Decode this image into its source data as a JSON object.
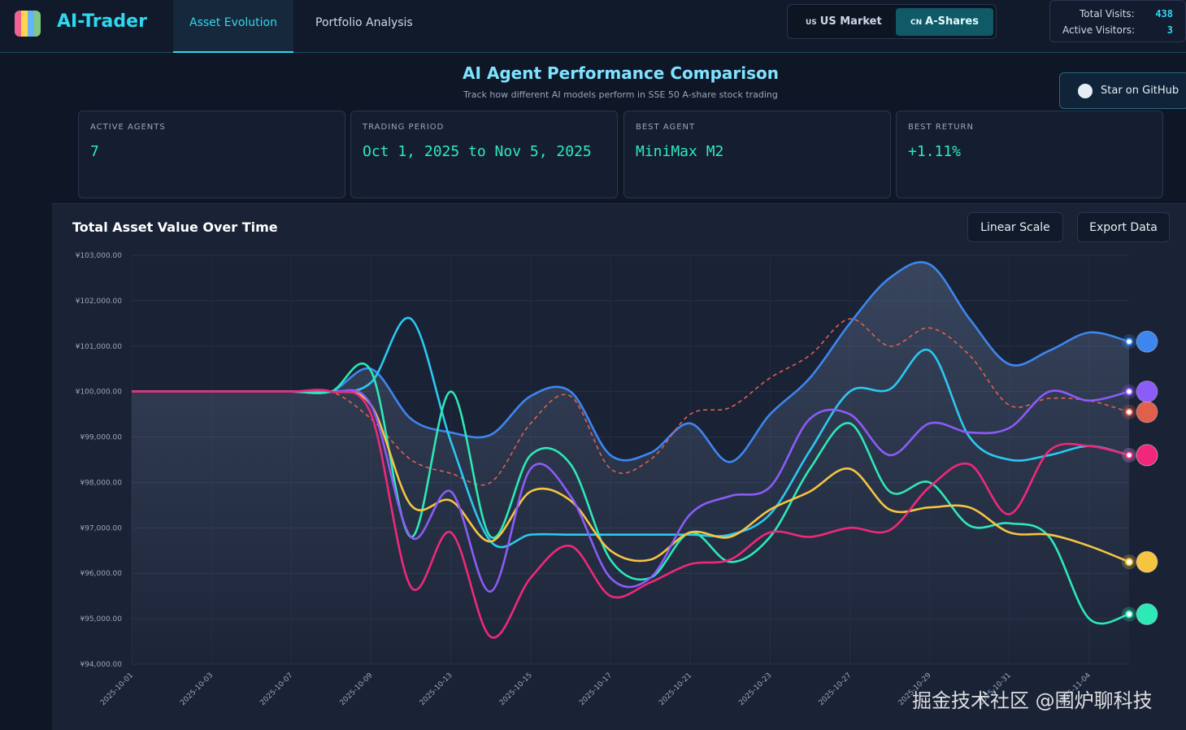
{
  "header": {
    "brand": "AI-Trader",
    "tabs": [
      "Asset Evolution",
      "Portfolio Analysis"
    ],
    "markets": [
      {
        "code": "US",
        "label": "US Market"
      },
      {
        "code": "CN",
        "label": "A-Shares"
      }
    ],
    "visits": {
      "total_label": "Total Visits:",
      "total": 438,
      "active_label": "Active Visitors:",
      "active": 3
    }
  },
  "page": {
    "title": "AI Agent Performance Comparison",
    "subtitle": "Track how different AI models perform in SSE 50 A-share stock trading",
    "github": "Star on GitHub"
  },
  "stats": [
    {
      "label": "ACTIVE AGENTS",
      "value": 7
    },
    {
      "label": "TRADING PERIOD",
      "value": "Oct 1, 2025 to Nov 5, 2025"
    },
    {
      "label": "BEST AGENT",
      "value": "MiniMax M2"
    },
    {
      "label": "BEST RETURN",
      "value": "+1.11%"
    }
  ],
  "panel": {
    "title": "Total Asset Value Over Time",
    "buttons": [
      "Linear Scale",
      "Export Data"
    ],
    "watermark": "掘金技术社区 @围炉聊科技"
  },
  "chart_data": {
    "type": "line",
    "grid": true,
    "categories": [
      "2025-10-01",
      null,
      "2025-10-03",
      null,
      "2025-10-07",
      null,
      "2025-10-09",
      null,
      "2025-10-13",
      null,
      "2025-10-15",
      null,
      "2025-10-17",
      null,
      "2025-10-21",
      null,
      "2025-10-23",
      null,
      "2025-10-27",
      null,
      "2025-10-29",
      null,
      "2025-10-31",
      null,
      "2025-11-04",
      null
    ],
    "ylim": [
      94000,
      103000
    ],
    "yticks": [
      {
        "value": 94000,
        "label": "¥94,000.00"
      },
      {
        "value": 95000,
        "label": "¥95,000.00"
      },
      {
        "value": 96000,
        "label": "¥96,000.00"
      },
      {
        "value": 97000,
        "label": "¥97,000.00"
      },
      {
        "value": 98000,
        "label": "¥98,000.00"
      },
      {
        "value": 99000,
        "label": "¥99,000.00"
      },
      {
        "value": 100000,
        "label": "¥100,000.00"
      },
      {
        "value": 101000,
        "label": "¥101,000.00"
      },
      {
        "value": 102000,
        "label": "¥102,000.00"
      },
      {
        "value": 103000,
        "label": "¥103,000.00"
      }
    ],
    "series": [
      {
        "color": "#3d86f0",
        "values": [
          100000,
          100000,
          100000,
          100000,
          100000,
          100000,
          100500,
          99400,
          99100,
          99050,
          99900,
          100000,
          98600,
          98650,
          99300,
          98450,
          99500,
          100300,
          101500,
          102500,
          102800,
          101600,
          100600,
          100900,
          101300,
          101100
        ]
      },
      {
        "color": "#e0604e",
        "dashed": true,
        "values": [
          100000,
          100000,
          100000,
          100000,
          100000,
          100000,
          99400,
          98500,
          98200,
          98000,
          99300,
          99900,
          98300,
          98500,
          99500,
          99650,
          100300,
          100800,
          101600,
          101000,
          101400,
          100800,
          99700,
          99850,
          99800,
          99550
        ]
      },
      {
        "color": "#2cc8f0",
        "values": [
          100000,
          100000,
          100000,
          100000,
          100000,
          100000,
          100200,
          101600,
          98900,
          96700,
          96850,
          96850,
          96850,
          96850,
          96850,
          96850,
          97300,
          98700,
          100000,
          100050,
          100900,
          99000,
          98500,
          98600,
          98800,
          98600
        ]
      },
      {
        "color": "#2ee8b6",
        "values": [
          100000,
          100000,
          100000,
          100000,
          100000,
          100000,
          100450,
          96800,
          100000,
          96800,
          98600,
          98400,
          96300,
          95900,
          96900,
          96250,
          96800,
          98300,
          99300,
          97800,
          98000,
          97050,
          97100,
          96800,
          95000,
          95100
        ]
      },
      {
        "color": "#f5c542",
        "values": [
          100000,
          100000,
          100000,
          100000,
          100000,
          100000,
          99700,
          97500,
          97600,
          96700,
          97800,
          97600,
          96500,
          96300,
          96900,
          96800,
          97400,
          97800,
          98300,
          97400,
          97450,
          97450,
          96900,
          96850,
          96600,
          96250
        ]
      },
      {
        "color": "#8b5cf6",
        "values": [
          100000,
          100000,
          100000,
          100000,
          100000,
          100000,
          99700,
          96800,
          97800,
          95600,
          98300,
          97700,
          95900,
          95900,
          97300,
          97700,
          97900,
          99400,
          99500,
          98600,
          99300,
          99100,
          99200,
          100000,
          99800,
          100000
        ]
      },
      {
        "color": "#f0287a",
        "values": [
          100000,
          100000,
          100000,
          100000,
          100000,
          100000,
          99500,
          95700,
          96900,
          94600,
          95900,
          96600,
          95500,
          95800,
          96200,
          96300,
          96900,
          96800,
          97000,
          96950,
          97900,
          98400,
          97300,
          98700,
          98800,
          98600
        ]
      }
    ]
  }
}
